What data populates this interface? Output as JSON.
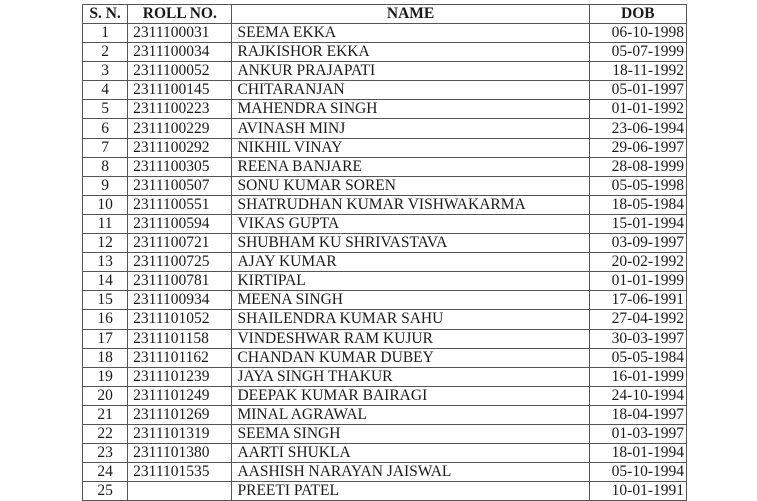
{
  "headers": {
    "sn": "S. N.",
    "roll": "ROLL NO.",
    "name": "NAME",
    "dob": "DOB"
  },
  "rows": [
    {
      "sn": "1",
      "roll": "2311100031",
      "name": "SEEMA EKKA",
      "dob": "06-10-1998"
    },
    {
      "sn": "2",
      "roll": "2311100034",
      "name": "RAJKISHOR EKKA",
      "dob": "05-07-1999"
    },
    {
      "sn": "3",
      "roll": "2311100052",
      "name": "ANKUR PRAJAPATI",
      "dob": "18-11-1992"
    },
    {
      "sn": "4",
      "roll": "2311100145",
      "name": "CHITARANJAN",
      "dob": "05-01-1997"
    },
    {
      "sn": "5",
      "roll": "2311100223",
      "name": "MAHENDRA SINGH",
      "dob": "01-01-1992"
    },
    {
      "sn": "6",
      "roll": "2311100229",
      "name": "AVINASH MINJ",
      "dob": "23-06-1994"
    },
    {
      "sn": "7",
      "roll": "2311100292",
      "name": "NIKHIL VINAY",
      "dob": "29-06-1997"
    },
    {
      "sn": "8",
      "roll": "2311100305",
      "name": "REENA BANJARE",
      "dob": "28-08-1999"
    },
    {
      "sn": "9",
      "roll": "2311100507",
      "name": "SONU KUMAR SOREN",
      "dob": "05-05-1998"
    },
    {
      "sn": "10",
      "roll": "2311100551",
      "name": "SHATRUDHAN KUMAR VISHWAKARMA",
      "dob": "18-05-1984"
    },
    {
      "sn": "11",
      "roll": "2311100594",
      "name": "VIKAS GUPTA",
      "dob": "15-01-1994"
    },
    {
      "sn": "12",
      "roll": "2311100721",
      "name": "SHUBHAM KU SHRIVASTAVA",
      "dob": "03-09-1997"
    },
    {
      "sn": "13",
      "roll": "2311100725",
      "name": "AJAY KUMAR",
      "dob": "20-02-1992"
    },
    {
      "sn": "14",
      "roll": "2311100781",
      "name": "KIRTIPAL",
      "dob": "01-01-1999"
    },
    {
      "sn": "15",
      "roll": "2311100934",
      "name": "MEENA SINGH",
      "dob": "17-06-1991"
    },
    {
      "sn": "16",
      "roll": "2311101052",
      "name": "SHAILENDRA KUMAR SAHU",
      "dob": "27-04-1992"
    },
    {
      "sn": "17",
      "roll": "2311101158",
      "name": "VINDESHWAR RAM KUJUR",
      "dob": "30-03-1997"
    },
    {
      "sn": "18",
      "roll": "2311101162",
      "name": "CHANDAN KUMAR DUBEY",
      "dob": "05-05-1984"
    },
    {
      "sn": "19",
      "roll": "2311101239",
      "name": "JAYA SINGH THAKUR",
      "dob": "16-01-1999"
    },
    {
      "sn": "20",
      "roll": "2311101249",
      "name": "DEEPAK KUMAR BAIRAGI",
      "dob": "24-10-1994"
    },
    {
      "sn": "21",
      "roll": "2311101269",
      "name": "MINAL AGRAWAL",
      "dob": "18-04-1997"
    },
    {
      "sn": "22",
      "roll": "2311101319",
      "name": "SEEMA SINGH",
      "dob": "01-03-1997"
    },
    {
      "sn": "23",
      "roll": "2311101380",
      "name": "AARTI SHUKLA",
      "dob": "18-01-1994"
    },
    {
      "sn": "24",
      "roll": "2311101535",
      "name": "AASHISH NARAYAN JAISWAL",
      "dob": "05-10-1994"
    },
    {
      "sn": "25",
      "roll": "",
      "name": "PREETI PATEL",
      "dob": "10-01-1991"
    }
  ]
}
